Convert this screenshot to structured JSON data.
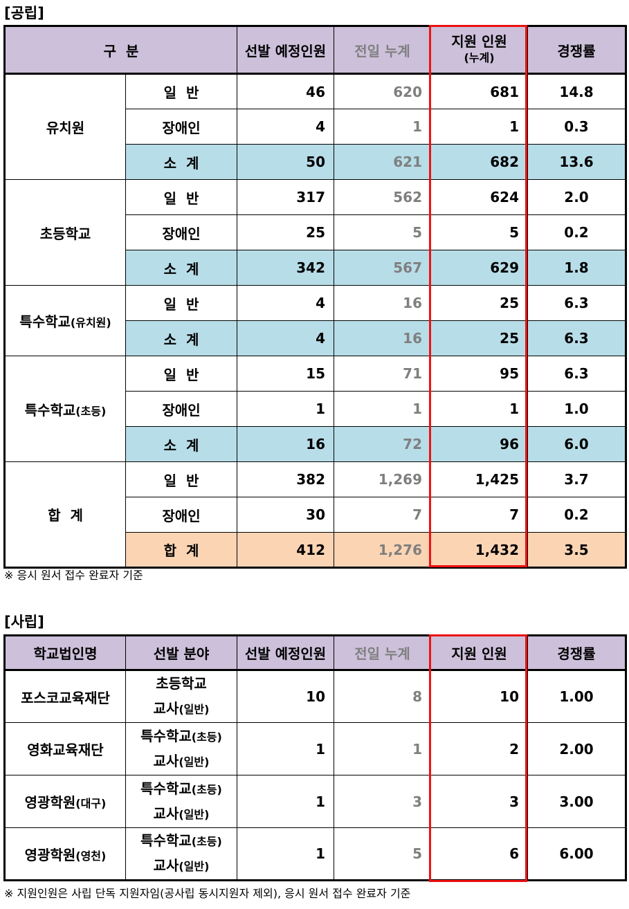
{
  "public": {
    "title": "[공립]",
    "headers": {
      "category": "구  분",
      "planned": "선발 예정인원",
      "prev": "전일 누계",
      "applicants_line1": "지원 인원",
      "applicants_line2": "(누계)",
      "rate": "경쟁률"
    },
    "groups": [
      {
        "name": "유치원",
        "name_suffix": "",
        "rows": [
          {
            "label": "일  반",
            "planned": "46",
            "prev": "620",
            "applicants": "681",
            "rate": "14.8",
            "type": "normal"
          },
          {
            "label": "장애인",
            "planned": "4",
            "prev": "1",
            "applicants": "1",
            "rate": "0.3",
            "type": "normal"
          },
          {
            "label": "소  계",
            "planned": "50",
            "prev": "621",
            "applicants": "682",
            "rate": "13.6",
            "type": "sub"
          }
        ]
      },
      {
        "name": "초등학교",
        "name_suffix": "",
        "rows": [
          {
            "label": "일  반",
            "planned": "317",
            "prev": "562",
            "applicants": "624",
            "rate": "2.0",
            "type": "normal"
          },
          {
            "label": "장애인",
            "planned": "25",
            "prev": "5",
            "applicants": "5",
            "rate": "0.2",
            "type": "normal"
          },
          {
            "label": "소  계",
            "planned": "342",
            "prev": "567",
            "applicants": "629",
            "rate": "1.8",
            "type": "sub"
          }
        ]
      },
      {
        "name": "특수학교",
        "name_suffix": "(유치원)",
        "rows": [
          {
            "label": "일  반",
            "planned": "4",
            "prev": "16",
            "applicants": "25",
            "rate": "6.3",
            "type": "normal"
          },
          {
            "label": "소  계",
            "planned": "4",
            "prev": "16",
            "applicants": "25",
            "rate": "6.3",
            "type": "sub"
          }
        ]
      },
      {
        "name": "특수학교",
        "name_suffix": "(초등)",
        "rows": [
          {
            "label": "일  반",
            "planned": "15",
            "prev": "71",
            "applicants": "95",
            "rate": "6.3",
            "type": "normal"
          },
          {
            "label": "장애인",
            "planned": "1",
            "prev": "1",
            "applicants": "1",
            "rate": "1.0",
            "type": "normal"
          },
          {
            "label": "소  계",
            "planned": "16",
            "prev": "72",
            "applicants": "96",
            "rate": "6.0",
            "type": "sub"
          }
        ]
      },
      {
        "name": "합  계",
        "name_suffix": "",
        "rows": [
          {
            "label": "일  반",
            "planned": "382",
            "prev": "1,269",
            "applicants": "1,425",
            "rate": "3.7",
            "type": "normal"
          },
          {
            "label": "장애인",
            "planned": "30",
            "prev": "7",
            "applicants": "7",
            "rate": "0.2",
            "type": "normal"
          },
          {
            "label": "합  계",
            "planned": "412",
            "prev": "1,276",
            "applicants": "1,432",
            "rate": "3.5",
            "type": "tot"
          }
        ]
      }
    ],
    "note": "※ 응시 원서 접수 완료자 기준"
  },
  "private": {
    "title": "[사립]",
    "headers": {
      "corp": "학교법인명",
      "field": "선발 분야",
      "planned": "선발 예정인원",
      "prev": "전일 누계",
      "applicants": "지원 인원",
      "rate": "경쟁률"
    },
    "rows": [
      {
        "corp": "포스코교육재단",
        "corp_suffix": "",
        "field1": "초등학교",
        "field1_suffix": "",
        "field2": "교사",
        "field2_suffix": "(일반)",
        "planned": "10",
        "prev": "8",
        "applicants": "10",
        "rate": "1.00"
      },
      {
        "corp": "영화교육재단",
        "corp_suffix": "",
        "field1": "특수학교",
        "field1_suffix": "(초등)",
        "field2": "교사",
        "field2_suffix": "(일반)",
        "planned": "1",
        "prev": "1",
        "applicants": "2",
        "rate": "2.00"
      },
      {
        "corp": "영광학원",
        "corp_suffix": "(대구)",
        "field1": "특수학교",
        "field1_suffix": "(초등)",
        "field2": "교사",
        "field2_suffix": "(일반)",
        "planned": "1",
        "prev": "3",
        "applicants": "3",
        "rate": "3.00"
      },
      {
        "corp": "영광학원",
        "corp_suffix": "(영천)",
        "field1": "특수학교",
        "field1_suffix": "(초등)",
        "field2": "교사",
        "field2_suffix": "(일반)",
        "planned": "1",
        "prev": "5",
        "applicants": "6",
        "rate": "6.00"
      }
    ],
    "note": "※ 지원인원은 사립 단독 지원자임(공사립 동시지원자 제외), 응시 원서 접수 완료자 기준"
  },
  "colors": {
    "header_bg": "#ccc0da",
    "subtotal_bg": "#b7dde8",
    "total_bg": "#fbd4b4",
    "highlight": "#ee1111",
    "muted_text": "#7f7f7f"
  }
}
